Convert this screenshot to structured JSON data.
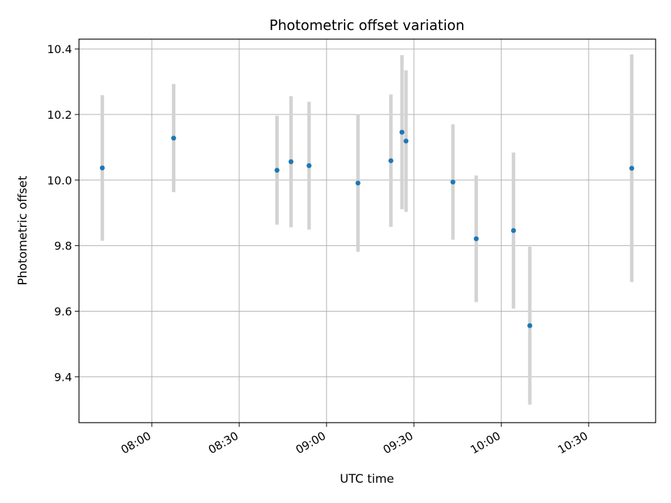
{
  "chart_data": {
    "type": "scatter",
    "title": "Photometric offset variation",
    "xlabel": "UTC time",
    "ylabel": "Photometric offset",
    "grid": true,
    "x_ticks": [
      "08:00",
      "08:30",
      "09:00",
      "09:30",
      "10:00",
      "10:30"
    ],
    "x_tick_minutes": [
      480,
      510,
      540,
      570,
      600,
      630
    ],
    "xlim_minutes": [
      455,
      653
    ],
    "y_ticks": [
      "9.4",
      "9.6",
      "9.8",
      "10.0",
      "10.2",
      "10.4"
    ],
    "y_tick_values": [
      9.4,
      9.6,
      9.8,
      10.0,
      10.2,
      10.4
    ],
    "ylim": [
      9.26,
      10.43
    ],
    "colors": {
      "point": "#1f77b4",
      "errorbar": "#d3d3d3",
      "grid": "#b0b0b0"
    },
    "points": [
      {
        "t": "07:43",
        "minutes": 463.0,
        "y": 10.037,
        "err": 0.222
      },
      {
        "t": "08:08",
        "minutes": 487.5,
        "y": 10.128,
        "err": 0.165
      },
      {
        "t": "08:43",
        "minutes": 523.0,
        "y": 10.03,
        "err": 0.166
      },
      {
        "t": "08:48",
        "minutes": 527.8,
        "y": 10.056,
        "err": 0.2
      },
      {
        "t": "08:54",
        "minutes": 534.0,
        "y": 10.044,
        "err": 0.195
      },
      {
        "t": "09:11",
        "minutes": 550.8,
        "y": 9.991,
        "err": 0.21
      },
      {
        "t": "09:22",
        "minutes": 562.1,
        "y": 10.059,
        "err": 0.202
      },
      {
        "t": "09:26",
        "minutes": 565.9,
        "y": 10.146,
        "err": 0.235
      },
      {
        "t": "09:27",
        "minutes": 567.3,
        "y": 10.119,
        "err": 0.216
      },
      {
        "t": "09:43",
        "minutes": 583.4,
        "y": 9.994,
        "err": 0.176
      },
      {
        "t": "09:51",
        "minutes": 591.4,
        "y": 9.821,
        "err": 0.193
      },
      {
        "t": "10:04",
        "minutes": 604.2,
        "y": 9.846,
        "err": 0.238
      },
      {
        "t": "10:10",
        "minutes": 609.8,
        "y": 9.556,
        "err": 0.241
      },
      {
        "t": "10:45",
        "minutes": 644.8,
        "y": 10.036,
        "err": 0.347
      }
    ]
  }
}
